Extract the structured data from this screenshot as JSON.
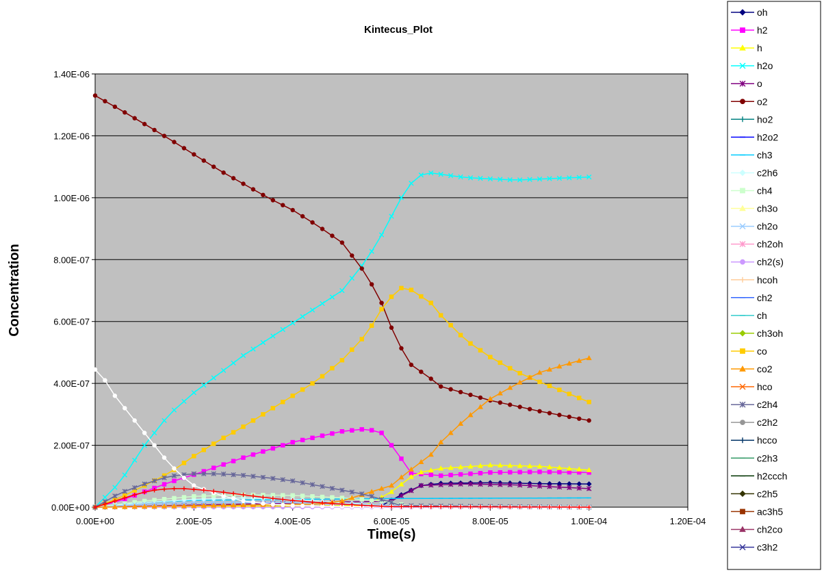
{
  "chart_data": {
    "type": "line",
    "title": "Kintecus_Plot",
    "xlabel": "Time(s)",
    "ylabel": "Concentration",
    "xlim": [
      0,
      0.00012
    ],
    "ylim": [
      0,
      1.4e-06
    ],
    "x_ticks": [
      "0.00E+00",
      "2.00E-05",
      "4.00E-05",
      "6.00E-05",
      "8.00E-05",
      "1.00E-04",
      "1.20E-04"
    ],
    "y_ticks": [
      "0.00E+00",
      "2.00E-07",
      "4.00E-07",
      "6.00E-07",
      "8.00E-07",
      "1.00E-06",
      "1.20E-06",
      "1.40E-06"
    ],
    "grid": "horizontal",
    "plot_background": "#C0C0C0",
    "legend_position": "right",
    "series": [
      {
        "name": "oh",
        "color": "#000080",
        "marker": "diamond",
        "points": [
          [
            0,
            0
          ],
          [
            5.8e-05,
            5e-09
          ],
          [
            6.2e-05,
            4e-08
          ],
          [
            6.6e-05,
            7e-08
          ],
          [
            7e-05,
            7.7e-08
          ],
          [
            8e-05,
            7.9e-08
          ],
          [
            9e-05,
            7.6e-08
          ],
          [
            0.0001,
            7.5e-08
          ]
        ]
      },
      {
        "name": "h2",
        "color": "#FF00FF",
        "marker": "square",
        "points": [
          [
            0,
            0
          ],
          [
            5e-06,
            2e-08
          ],
          [
            1e-05,
            5e-08
          ],
          [
            1.5e-05,
            8e-08
          ],
          [
            2e-05,
            1.05e-07
          ],
          [
            3e-05,
            1.6e-07
          ],
          [
            4e-05,
            2.1e-07
          ],
          [
            5e-05,
            2.45e-07
          ],
          [
            5.5e-05,
            2.53e-07
          ],
          [
            5.8e-05,
            2.4e-07
          ],
          [
            6.1e-05,
            1.8e-07
          ],
          [
            6.4e-05,
            1.1e-07
          ],
          [
            7e-05,
            1.02e-07
          ],
          [
            8e-05,
            1.12e-07
          ],
          [
            9e-05,
            1.14e-07
          ],
          [
            0.0001,
            1.12e-07
          ]
        ]
      },
      {
        "name": "h",
        "color": "#FFFF00",
        "marker": "triangle",
        "points": [
          [
            0,
            0
          ],
          [
            5.5e-05,
            5e-09
          ],
          [
            6e-05,
            5e-08
          ],
          [
            6.5e-05,
            1.1e-07
          ],
          [
            7e-05,
            1.25e-07
          ],
          [
            8e-05,
            1.36e-07
          ],
          [
            9e-05,
            1.32e-07
          ],
          [
            0.0001,
            1.2e-07
          ]
        ]
      },
      {
        "name": "h2o",
        "color": "#00FFFF",
        "marker": "x",
        "points": [
          [
            0,
            0
          ],
          [
            5e-06,
            8e-08
          ],
          [
            1e-05,
            2e-07
          ],
          [
            1.5e-05,
            3e-07
          ],
          [
            2e-05,
            3.7e-07
          ],
          [
            3e-05,
            4.9e-07
          ],
          [
            4e-05,
            5.95e-07
          ],
          [
            5e-05,
            7e-07
          ],
          [
            5.5e-05,
            8e-07
          ],
          [
            5.8e-05,
            8.8e-07
          ],
          [
            6.2e-05,
            1e-06
          ],
          [
            6.5e-05,
            1.07e-06
          ],
          [
            6.8e-05,
            1.08e-06
          ],
          [
            7.5e-05,
            1.065e-06
          ],
          [
            8.5e-05,
            1.057e-06
          ],
          [
            0.0001,
            1.067e-06
          ]
        ]
      },
      {
        "name": "o",
        "color": "#800080",
        "marker": "star",
        "points": [
          [
            0,
            0
          ],
          [
            6e-05,
            2e-08
          ],
          [
            6.6e-05,
            7e-08
          ],
          [
            7.5e-05,
            7.5e-08
          ],
          [
            8.5e-05,
            7.2e-08
          ],
          [
            0.0001,
            6e-08
          ]
        ]
      },
      {
        "name": "o2",
        "color": "#800000",
        "marker": "circle",
        "points": [
          [
            0,
            1.33e-06
          ],
          [
            5e-06,
            1.285e-06
          ],
          [
            1e-05,
            1.238e-06
          ],
          [
            1.5e-05,
            1.19e-06
          ],
          [
            2e-05,
            1.14e-06
          ],
          [
            2.5e-05,
            1.09e-06
          ],
          [
            3e-05,
            1.045e-06
          ],
          [
            3.5e-05,
            1e-06
          ],
          [
            4e-05,
            9.6e-07
          ],
          [
            4.5e-05,
            9.1e-07
          ],
          [
            5e-05,
            8.55e-07
          ],
          [
            5.5e-05,
            7.5e-07
          ],
          [
            5.8e-05,
            6.6e-07
          ],
          [
            6.1e-05,
            5.4e-07
          ],
          [
            6.4e-05,
            4.6e-07
          ],
          [
            6.8e-05,
            4.15e-07
          ],
          [
            7e-05,
            3.9e-07
          ],
          [
            8e-05,
            3.45e-07
          ],
          [
            9e-05,
            3.1e-07
          ],
          [
            0.0001,
            2.8e-07
          ]
        ]
      },
      {
        "name": "ho2",
        "color": "#008080",
        "marker": "plus",
        "points": []
      },
      {
        "name": "h2o2",
        "color": "#0000FF",
        "marker": "dash",
        "points": []
      },
      {
        "name": "ch3",
        "color": "#00CCFF",
        "marker": "dash",
        "points": [
          [
            0,
            0
          ],
          [
            1e-05,
            1.5e-08
          ],
          [
            2e-05,
            2.2e-08
          ],
          [
            4e-05,
            2.5e-08
          ],
          [
            6e-05,
            2.8e-08
          ],
          [
            0.0001,
            3e-08
          ]
        ]
      },
      {
        "name": "c2h6",
        "color": "#CCFFFF",
        "marker": "diamond",
        "points": [
          [
            0,
            0
          ],
          [
            1e-05,
            1.5e-08
          ],
          [
            2e-05,
            2.5e-08
          ],
          [
            3e-05,
            3e-08
          ],
          [
            4e-05,
            2.5e-08
          ],
          [
            5e-05,
            1.5e-08
          ],
          [
            6e-05,
            3e-09
          ],
          [
            0.0001,
            0
          ]
        ]
      },
      {
        "name": "ch4",
        "color": "#CCFFCC",
        "marker": "square",
        "points": [
          [
            0,
            0
          ],
          [
            1e-05,
            2e-08
          ],
          [
            2e-05,
            3.5e-08
          ],
          [
            3e-05,
            4e-08
          ],
          [
            4e-05,
            3.8e-08
          ],
          [
            5e-05,
            3e-08
          ],
          [
            5.8e-05,
            2e-08
          ],
          [
            6.4e-05,
            3e-09
          ],
          [
            0.0001,
            0
          ]
        ]
      },
      {
        "name": "ch3o",
        "color": "#FFFF99",
        "marker": "triangle",
        "points": []
      },
      {
        "name": "ch2o",
        "color": "#99CCFF",
        "marker": "x",
        "points": [
          [
            0,
            0
          ],
          [
            1e-05,
            1e-08
          ],
          [
            2e-05,
            1.5e-08
          ],
          [
            4e-05,
            1.5e-08
          ],
          [
            6e-05,
            5e-09
          ],
          [
            0.0001,
            0
          ]
        ]
      },
      {
        "name": "ch2oh",
        "color": "#FF99CC",
        "marker": "star",
        "points": []
      },
      {
        "name": "ch2(s)",
        "color": "#CC99FF",
        "marker": "circle",
        "points": [
          [
            0,
            0
          ],
          [
            0.0001,
            0
          ]
        ]
      },
      {
        "name": "hcoh",
        "color": "#FFCC99",
        "marker": "plus",
        "points": []
      },
      {
        "name": "ch2",
        "color": "#3366FF",
        "marker": "dash",
        "points": []
      },
      {
        "name": "ch",
        "color": "#33CCCC",
        "marker": "dash",
        "points": []
      },
      {
        "name": "ch3oh",
        "color": "#99CC00",
        "marker": "diamond",
        "points": []
      },
      {
        "name": "co",
        "color": "#FFCC00",
        "marker": "square",
        "points": [
          [
            0,
            0
          ],
          [
            5e-06,
            3e-08
          ],
          [
            1e-05,
            7e-08
          ],
          [
            1.5e-05,
            1.1e-07
          ],
          [
            2e-05,
            1.65e-07
          ],
          [
            2.5e-05,
            2.15e-07
          ],
          [
            3e-05,
            2.6e-07
          ],
          [
            3.5e-05,
            3.1e-07
          ],
          [
            4e-05,
            3.6e-07
          ],
          [
            4.5e-05,
            4.1e-07
          ],
          [
            5e-05,
            4.75e-07
          ],
          [
            5.5e-05,
            5.6e-07
          ],
          [
            5.8e-05,
            6.4e-07
          ],
          [
            6e-05,
            6.8e-07
          ],
          [
            6.2e-05,
            7.08e-07
          ],
          [
            6.4e-05,
            7.02e-07
          ],
          [
            6.8e-05,
            6.6e-07
          ],
          [
            7e-05,
            6.2e-07
          ],
          [
            7.5e-05,
            5.4e-07
          ],
          [
            8e-05,
            4.85e-07
          ],
          [
            8.5e-05,
            4.4e-07
          ],
          [
            9e-05,
            4.05e-07
          ],
          [
            0.0001,
            3.4e-07
          ]
        ]
      },
      {
        "name": "co2",
        "color": "#FF9900",
        "marker": "triangle",
        "points": [
          [
            0,
            0
          ],
          [
            4.5e-05,
            1e-08
          ],
          [
            5e-05,
            2e-08
          ],
          [
            5.5e-05,
            4.5e-08
          ],
          [
            6e-05,
            7e-08
          ],
          [
            6.3e-05,
            1.1e-07
          ],
          [
            6.8e-05,
            1.7e-07
          ],
          [
            7e-05,
            2.1e-07
          ],
          [
            7.5e-05,
            2.85e-07
          ],
          [
            8e-05,
            3.5e-07
          ],
          [
            8.5e-05,
            3.95e-07
          ],
          [
            9e-05,
            4.35e-07
          ],
          [
            9.5e-05,
            4.6e-07
          ],
          [
            0.0001,
            4.82e-07
          ]
        ]
      },
      {
        "name": "hco",
        "color": "#FF6600",
        "marker": "x",
        "points": []
      },
      {
        "name": "c2h4",
        "color": "#666699",
        "marker": "star",
        "points": [
          [
            0,
            0
          ],
          [
            5e-06,
            4.5e-08
          ],
          [
            1e-05,
            7.5e-08
          ],
          [
            1.5e-05,
            1e-07
          ],
          [
            2e-05,
            1.08e-07
          ],
          [
            2.5e-05,
            1.08e-07
          ],
          [
            3e-05,
            1.03e-07
          ],
          [
            3.5e-05,
            9.5e-08
          ],
          [
            4e-05,
            8.5e-08
          ],
          [
            4.5e-05,
            7e-08
          ],
          [
            5e-05,
            5.5e-08
          ],
          [
            5.5e-05,
            4e-08
          ],
          [
            5.8e-05,
            2.5e-08
          ],
          [
            6.2e-05,
            5e-09
          ],
          [
            0.0001,
            0
          ]
        ]
      },
      {
        "name": "c2h2",
        "color": "#969696",
        "marker": "circle",
        "points": []
      },
      {
        "name": "hcco",
        "color": "#003366",
        "marker": "plus",
        "points": []
      },
      {
        "name": "c2h3",
        "color": "#339966",
        "marker": "dash",
        "points": []
      },
      {
        "name": "h2ccch",
        "color": "#003300",
        "marker": "dash",
        "points": []
      },
      {
        "name": "c2h5",
        "color": "#333300",
        "marker": "diamond",
        "points": []
      },
      {
        "name": "ac3h5",
        "color": "#993300",
        "marker": "square",
        "points": []
      },
      {
        "name": "ch2co",
        "color": "#993366",
        "marker": "triangle",
        "points": []
      },
      {
        "name": "c3h2",
        "color": "#333399",
        "marker": "x",
        "points": []
      },
      {
        "name": "",
        "color": "#FFFFFF",
        "marker": "circle",
        "points": [
          [
            0,
            4.45e-07
          ],
          [
            2e-06,
            4.1e-07
          ],
          [
            4e-06,
            3.6e-07
          ],
          [
            6e-06,
            3.2e-07
          ],
          [
            8e-06,
            2.8e-07
          ],
          [
            1e-05,
            2.4e-07
          ],
          [
            1.2e-05,
            2e-07
          ],
          [
            1.4e-05,
            1.6e-07
          ],
          [
            1.6e-05,
            1.25e-07
          ],
          [
            1.8e-05,
            9.5e-08
          ],
          [
            2e-05,
            7e-08
          ],
          [
            2.5e-05,
            4e-08
          ],
          [
            3e-05,
            2e-08
          ],
          [
            3.5e-05,
            1e-08
          ],
          [
            4e-05,
            5e-09
          ],
          [
            5e-05,
            2e-09
          ],
          [
            0.0001,
            0
          ]
        ]
      },
      {
        "name": "",
        "color": "#FF0000",
        "marker": "plus",
        "points": [
          [
            0,
            0
          ],
          [
            3e-06,
            1.5e-08
          ],
          [
            6e-06,
            3e-08
          ],
          [
            9e-06,
            4.5e-08
          ],
          [
            1.2e-05,
            5.5e-08
          ],
          [
            1.5e-05,
            6e-08
          ],
          [
            1.8e-05,
            6e-08
          ],
          [
            2.2e-05,
            5.5e-08
          ],
          [
            2.6e-05,
            4.8e-08
          ],
          [
            3e-05,
            4e-08
          ],
          [
            3.5e-05,
            3e-08
          ],
          [
            4e-05,
            2.2e-08
          ],
          [
            4.5e-05,
            1.5e-08
          ],
          [
            5e-05,
            1e-08
          ],
          [
            5.5e-05,
            5e-09
          ],
          [
            6e-05,
            2e-09
          ],
          [
            0.0001,
            0
          ]
        ]
      }
    ]
  }
}
